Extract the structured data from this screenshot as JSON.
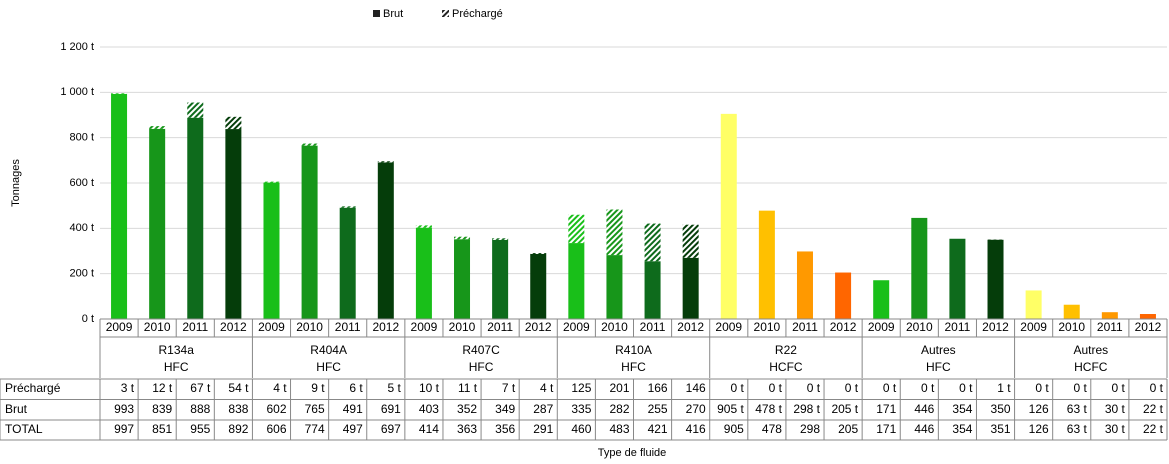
{
  "chart_data": {
    "type": "stacked-bar-table",
    "ylabel": "Tonnages",
    "xlabel": "Type de fluide",
    "ylim": [
      0,
      1200
    ],
    "yticks": [
      {
        "value": 0,
        "label": "0 t"
      },
      {
        "value": 200,
        "label": "200 t"
      },
      {
        "value": 400,
        "label": "400 t"
      },
      {
        "value": 600,
        "label": "600 t"
      },
      {
        "value": 800,
        "label": "800 t"
      },
      {
        "value": 1000,
        "label": "1 000 t"
      },
      {
        "value": 1200,
        "label": "1 200 t"
      }
    ],
    "grid": true,
    "categories": [
      "2009",
      "2010",
      "2011",
      "2012",
      "2009",
      "2010",
      "2011",
      "2012",
      "2009",
      "2010",
      "2011",
      "2012",
      "2009",
      "2010",
      "2011",
      "2012",
      "2009",
      "2010",
      "2011",
      "2012",
      "2009",
      "2010",
      "2011",
      "2012",
      "2009",
      "2010",
      "2011",
      "2012"
    ],
    "groups": [
      {
        "name": "R134a",
        "family": "HFC",
        "colors": [
          "#19bf19",
          "#17961a",
          "#0e6b1c",
          "#053d0a"
        ]
      },
      {
        "name": "R404A",
        "family": "HFC",
        "colors": [
          "#19bf19",
          "#17961a",
          "#0e6b1c",
          "#053d0a"
        ]
      },
      {
        "name": "R407C",
        "family": "HFC",
        "colors": [
          "#19bf19",
          "#17961a",
          "#0e6b1c",
          "#053d0a"
        ]
      },
      {
        "name": "R410A",
        "family": "HFC",
        "colors": [
          "#19bf19",
          "#17961a",
          "#0e6b1c",
          "#053d0a"
        ]
      },
      {
        "name": "R22",
        "family": "HCFC",
        "colors": [
          "#ffff66",
          "#ffc000",
          "#ff9900",
          "#ff6600"
        ]
      },
      {
        "name": "Autres",
        "family": "HFC",
        "colors": [
          "#19bf19",
          "#17961a",
          "#0e6b1c",
          "#053d0a"
        ]
      },
      {
        "name": "Autres",
        "family": "HCFC",
        "colors": [
          "#ffff66",
          "#ffc000",
          "#ff9900",
          "#ff6600"
        ]
      }
    ],
    "series": [
      {
        "name": "Brut",
        "values": [
          993,
          839,
          888,
          838,
          602,
          765,
          491,
          691,
          403,
          352,
          349,
          287,
          335,
          282,
          255,
          270,
          905,
          478,
          298,
          205,
          171,
          446,
          354,
          350,
          126,
          63,
          30,
          22
        ],
        "value_labels": [
          "993",
          "839",
          "888",
          "838",
          "602",
          "765",
          "491",
          "691",
          "403",
          "352",
          "349",
          "287",
          "335",
          "282",
          "255",
          "270",
          "905 t",
          "478 t",
          "298 t",
          "205 t",
          "171",
          "446",
          "354",
          "350",
          "126",
          "63 t",
          "30 t",
          "22 t"
        ]
      },
      {
        "name": "Préchargé",
        "values": [
          3,
          12,
          67,
          54,
          4,
          9,
          6,
          5,
          10,
          11,
          7,
          4,
          125,
          201,
          166,
          146,
          0,
          0,
          0,
          0,
          0,
          0,
          0,
          1,
          0,
          0,
          0,
          0
        ],
        "value_labels": [
          "3 t",
          "12 t",
          "67 t",
          "54 t",
          "4 t",
          "9 t",
          "6 t",
          "5 t",
          "10 t",
          "11 t",
          "7 t",
          "4 t",
          "125",
          "201",
          "166",
          "146",
          "0 t",
          "0 t",
          "0 t",
          "0 t",
          "0 t",
          "0 t",
          "0 t",
          "1 t",
          "0 t",
          "0 t",
          "0 t",
          "0 t"
        ]
      }
    ],
    "total": {
      "name": "TOTAL",
      "values": [
        997,
        851,
        955,
        892,
        606,
        774,
        497,
        697,
        414,
        363,
        356,
        291,
        460,
        483,
        421,
        416,
        905,
        478,
        298,
        205,
        171,
        446,
        354,
        351,
        126,
        63,
        30,
        22
      ],
      "value_labels": [
        "997",
        "851",
        "955",
        "892",
        "606",
        "774",
        "497",
        "697",
        "414",
        "363",
        "356",
        "291",
        "460",
        "483",
        "421",
        "416",
        "905",
        "478",
        "298",
        "205",
        "171",
        "446",
        "354",
        "351",
        "126",
        "63 t",
        "30 t",
        "22 t"
      ]
    }
  }
}
